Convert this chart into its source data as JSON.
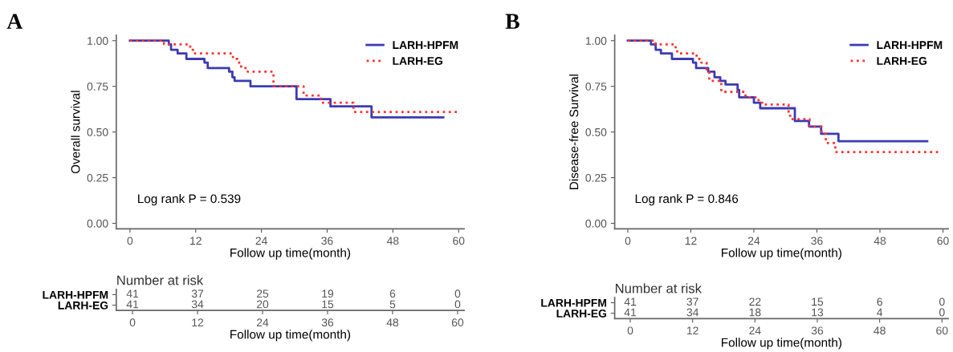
{
  "chart_data": [
    {
      "type": "step",
      "title": "A",
      "ylabel": "Overall survival",
      "xlabel": "Follow up time(month)",
      "xlim": [
        -2.5,
        61
      ],
      "xticks": [
        0,
        12,
        24,
        36,
        48,
        60
      ],
      "ylim": [
        -0.03,
        1.03
      ],
      "yticks": [
        {
          "value": 0,
          "label": "0.00"
        },
        {
          "value": 0.25,
          "label": "0.25"
        },
        {
          "value": 0.5,
          "label": "0.50"
        },
        {
          "value": 0.75,
          "label": "0.75"
        },
        {
          "value": 1,
          "label": "1.00"
        }
      ],
      "grid": false,
      "legend": "top right",
      "annotations": [
        "Log rank P = 0.539"
      ],
      "series": [
        {
          "name": "LARH-HPFM",
          "color": "#3b3bb3",
          "line_style": "solid",
          "x": [
            0,
            7.1,
            7.5,
            8.7,
            10.3,
            13.6,
            14.2,
            18.1,
            18.7,
            19.1,
            22.0,
            30.4,
            36.6,
            44.1,
            57.2
          ],
          "values": [
            1,
            0.98,
            0.95,
            0.93,
            0.9,
            0.88,
            0.85,
            0.83,
            0.8,
            0.78,
            0.75,
            0.68,
            0.64,
            0.58,
            0.58
          ]
        },
        {
          "name": "LARH-EG",
          "color": "#ff3333",
          "line_style": "dotted",
          "x": [
            0,
            6.2,
            11.0,
            11.5,
            18.8,
            19.6,
            20.3,
            21.5,
            26.2,
            31.7,
            34.9,
            40.8,
            60
          ],
          "values": [
            1,
            0.98,
            0.95,
            0.93,
            0.9,
            0.88,
            0.85,
            0.83,
            0.75,
            0.7,
            0.66,
            0.61,
            0.61
          ]
        }
      ]
    },
    {
      "type": "heatmap",
      "title": "Number at risk",
      "xlabel": "Follow up time(month)",
      "categories": [
        "0",
        "12",
        "24",
        "36",
        "48",
        "60"
      ],
      "y_categories": [
        "LARH-HPFM",
        "LARH-EG"
      ],
      "data_labels": true,
      "cells": [
        [
          41,
          37,
          25,
          19,
          6,
          0
        ],
        [
          41,
          34,
          20,
          15,
          5,
          0
        ]
      ]
    },
    {
      "type": "step",
      "title": "B",
      "ylabel": "Disease-free Survival",
      "xlabel": "Follow up time(month)",
      "xlim": [
        -2.5,
        61
      ],
      "xticks": [
        0,
        12,
        24,
        36,
        48,
        60
      ],
      "ylim": [
        -0.03,
        1.03
      ],
      "yticks": [
        {
          "value": 0,
          "label": "0.00"
        },
        {
          "value": 0.25,
          "label": "0.25"
        },
        {
          "value": 0.5,
          "label": "0.50"
        },
        {
          "value": 0.75,
          "label": "0.75"
        },
        {
          "value": 1,
          "label": "1.00"
        }
      ],
      "grid": false,
      "legend": "top right",
      "annotations": [
        "Log rank P = 0.846"
      ],
      "series": [
        {
          "name": "LARH-HPFM",
          "color": "#3b3bb3",
          "line_style": "solid",
          "x": [
            0,
            4.4,
            5.3,
            6.3,
            8.4,
            12.4,
            13.0,
            15.3,
            16.5,
            17.6,
            18.6,
            20.9,
            21.2,
            24.0,
            25.2,
            31.8,
            34.5,
            36.8,
            40.1,
            57.0
          ],
          "values": [
            1,
            0.98,
            0.95,
            0.93,
            0.9,
            0.88,
            0.85,
            0.83,
            0.8,
            0.78,
            0.76,
            0.73,
            0.69,
            0.66,
            0.63,
            0.56,
            0.53,
            0.49,
            0.45,
            0.45
          ]
        },
        {
          "name": "LARH-EG",
          "color": "#ff3333",
          "line_style": "dotted",
          "x": [
            0,
            5.3,
            9.1,
            9.4,
            13.1,
            14.0,
            15.0,
            15.5,
            17.8,
            22.4,
            24.9,
            25.6,
            30.6,
            30.9,
            34.6,
            36.9,
            37.7,
            39.5,
            59.4
          ],
          "values": [
            1,
            0.98,
            0.95,
            0.93,
            0.9,
            0.88,
            0.83,
            0.78,
            0.72,
            0.69,
            0.66,
            0.65,
            0.6,
            0.57,
            0.53,
            0.49,
            0.44,
            0.39,
            0.39
          ]
        }
      ]
    },
    {
      "type": "heatmap",
      "title": "Number at risk",
      "xlabel": "Follow up time(month)",
      "categories": [
        "0",
        "12",
        "24",
        "36",
        "48",
        "60"
      ],
      "y_categories": [
        "LARH-HPFM",
        "LARH-EG"
      ],
      "data_labels": true,
      "cells": [
        [
          41,
          37,
          22,
          15,
          6,
          0
        ],
        [
          41,
          34,
          18,
          13,
          4,
          0
        ]
      ]
    }
  ]
}
